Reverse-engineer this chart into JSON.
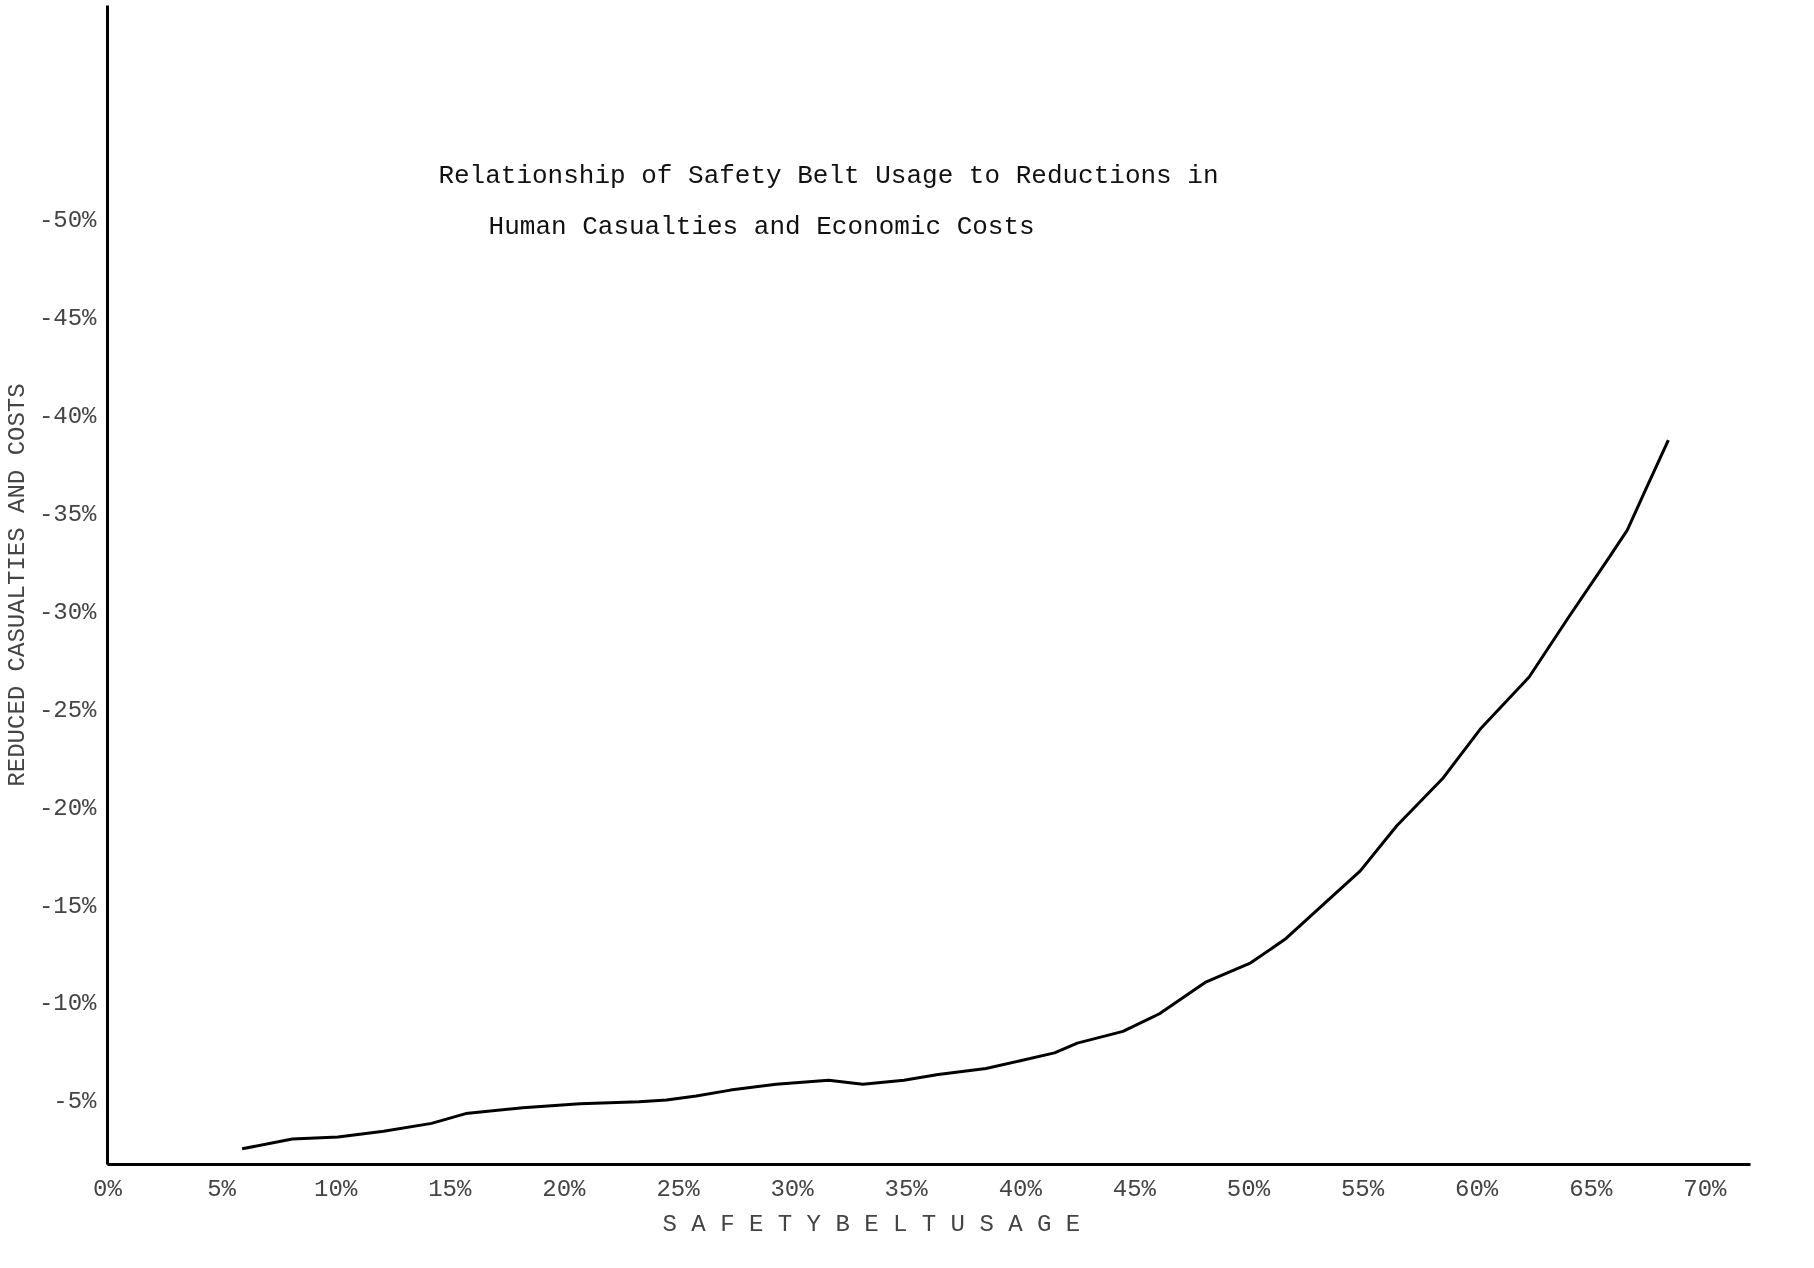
{
  "chart_data": {
    "type": "line",
    "title": "Relationship of Safety Belt Usage to Reductions in\nHuman Casualties and Economic Costs",
    "xlabel": "S A F E T Y     B E L T     U S A G E",
    "ylabel": "REDUCED CASUALTIES AND COSTS",
    "series": [
      {
        "color": "#000000",
        "x": [
          5.9,
          8.1,
          10.1,
          12.1,
          14.2,
          15.7,
          18.2,
          20.7,
          23.3,
          24.5,
          25.8,
          27.3,
          29.3,
          31.6,
          33.1,
          34.9,
          36.4,
          38.5,
          40.0,
          41.5,
          42.5,
          44.5,
          46.1,
          48.1,
          50.1,
          51.6,
          53.2,
          54.9,
          56.5,
          58.5,
          60.2,
          62.3,
          64.0,
          65.8,
          66.6,
          67.3,
          68.4
        ],
        "values": [
          -2.6,
          -3.1,
          -3.2,
          -3.5,
          -3.9,
          -4.4,
          -4.7,
          -4.9,
          -5.0,
          -5.1,
          -5.3,
          -5.6,
          -5.9,
          -6.1,
          -5.9,
          -6.1,
          -6.4,
          -6.7,
          -7.1,
          -7.5,
          -8.0,
          -8.6,
          -9.5,
          -11.1,
          -12.1,
          -13.3,
          -15.0,
          -16.8,
          -19.1,
          -21.5,
          -24.1,
          -26.7,
          -29.7,
          -32.8,
          -34.2,
          -36.0,
          -38.8
        ]
      }
    ],
    "xlim": [
      0,
      72
    ],
    "ylim": [
      -1.8,
      -61
    ],
    "xticks": [
      {
        "value": 0,
        "label": "0%"
      },
      {
        "value": 5,
        "label": "5%"
      },
      {
        "value": 10,
        "label": "10%"
      },
      {
        "value": 15,
        "label": "15%"
      },
      {
        "value": 20,
        "label": "20%"
      },
      {
        "value": 25,
        "label": "25%"
      },
      {
        "value": 30,
        "label": "30%"
      },
      {
        "value": 35,
        "label": "35%"
      },
      {
        "value": 40,
        "label": "40%"
      },
      {
        "value": 45,
        "label": "45%"
      },
      {
        "value": 50,
        "label": "50%"
      },
      {
        "value": 55,
        "label": "55%"
      },
      {
        "value": 60,
        "label": "60%"
      },
      {
        "value": 65,
        "label": "65%"
      },
      {
        "value": 70,
        "label": "70%"
      }
    ],
    "yticks": [
      {
        "value": -5,
        "label": "-5%"
      },
      {
        "value": -10,
        "label": "-10%"
      },
      {
        "value": -15,
        "label": "-15%"
      },
      {
        "value": -20,
        "label": "-20%"
      },
      {
        "value": -25,
        "label": "-25%"
      },
      {
        "value": -30,
        "label": "-30%"
      },
      {
        "value": -35,
        "label": "-35%"
      },
      {
        "value": -40,
        "label": "-40%"
      },
      {
        "value": -45,
        "label": "-45%"
      },
      {
        "value": -50,
        "label": "-50%"
      }
    ],
    "grid": false
  }
}
